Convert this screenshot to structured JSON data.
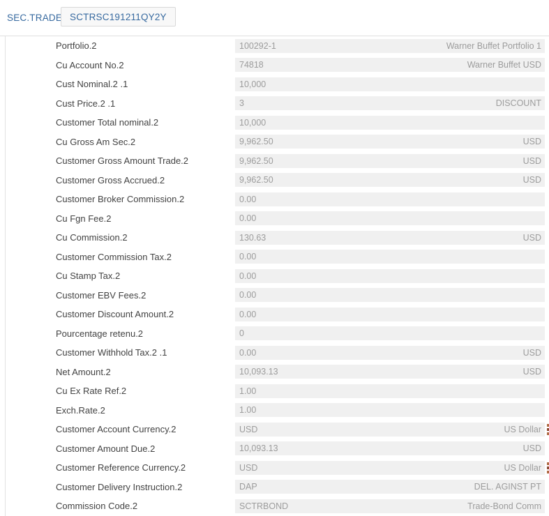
{
  "header": {
    "screen_name": "SEC.TRADE",
    "record_id": "SCTRSC191211QY2Y"
  },
  "colors": {
    "accent_blue": "#36699f",
    "label_text": "#424242",
    "value_text": "#9c9c9c",
    "value_strip_bg": "#f0f0f0",
    "border": "#e0e0e0",
    "chip_bg": "#f8f8f8",
    "chip_border": "#d8d8d8",
    "marker_orange": "#b06b45"
  },
  "fields": [
    {
      "label": "Portfolio.2",
      "value": "100292-1",
      "enrichment": "Warner Buffet Portfolio 1",
      "marker": false
    },
    {
      "label": "Cu Account No.2",
      "value": "74818",
      "enrichment": "Warner Buffet USD",
      "marker": false
    },
    {
      "label": "Cust Nominal.2 .1",
      "value": "10,000",
      "enrichment": "",
      "marker": false
    },
    {
      "label": "Cust Price.2 .1",
      "value": "3",
      "enrichment": "DISCOUNT",
      "marker": false
    },
    {
      "label": "Customer Total nominal.2",
      "value": "10,000",
      "enrichment": "",
      "marker": false
    },
    {
      "label": "Cu Gross Am Sec.2",
      "value": "9,962.50",
      "enrichment": "USD",
      "marker": false
    },
    {
      "label": "Customer Gross Amount Trade.2",
      "value": "9,962.50",
      "enrichment": "USD",
      "marker": false
    },
    {
      "label": "Customer Gross Accrued.2",
      "value": "9,962.50",
      "enrichment": "USD",
      "marker": false
    },
    {
      "label": "Customer Broker Commission.2",
      "value": "0.00",
      "enrichment": "",
      "marker": false
    },
    {
      "label": "Cu Fgn Fee.2",
      "value": "0.00",
      "enrichment": "",
      "marker": false
    },
    {
      "label": "Cu Commission.2",
      "value": "130.63",
      "enrichment": "USD",
      "marker": false
    },
    {
      "label": "Customer Commission Tax.2",
      "value": "0.00",
      "enrichment": "",
      "marker": false
    },
    {
      "label": "Cu Stamp Tax.2",
      "value": "0.00",
      "enrichment": "",
      "marker": false
    },
    {
      "label": "Customer EBV Fees.2",
      "value": "0.00",
      "enrichment": "",
      "marker": false
    },
    {
      "label": "Customer Discount Amount.2",
      "value": "0.00",
      "enrichment": "",
      "marker": false
    },
    {
      "label": "Pourcentage retenu.2",
      "value": "0",
      "enrichment": "",
      "marker": false
    },
    {
      "label": "Customer Withhold Tax.2 .1",
      "value": "0.00",
      "enrichment": "USD",
      "marker": false
    },
    {
      "label": "Net Amount.2",
      "value": "10,093.13",
      "enrichment": "USD",
      "marker": false
    },
    {
      "label": "Cu Ex Rate Ref.2",
      "value": "1.00",
      "enrichment": "",
      "marker": false
    },
    {
      "label": "Exch.Rate.2",
      "value": "1.00",
      "enrichment": "",
      "marker": false
    },
    {
      "label": "Customer Account Currency.2",
      "value": "USD",
      "enrichment": "US Dollar",
      "marker": true
    },
    {
      "label": "Customer Amount Due.2",
      "value": "10,093.13",
      "enrichment": "USD",
      "marker": false
    },
    {
      "label": "Customer Reference Currency.2",
      "value": "USD",
      "enrichment": "US Dollar",
      "marker": true
    },
    {
      "label": "Customer Delivery Instruction.2",
      "value": "DAP",
      "enrichment": "DEL. AGINST PT",
      "marker": false
    },
    {
      "label": "Commission Code.2",
      "value": "SCTRBOND",
      "enrichment": "Trade-Bond Comm",
      "marker": false
    }
  ]
}
